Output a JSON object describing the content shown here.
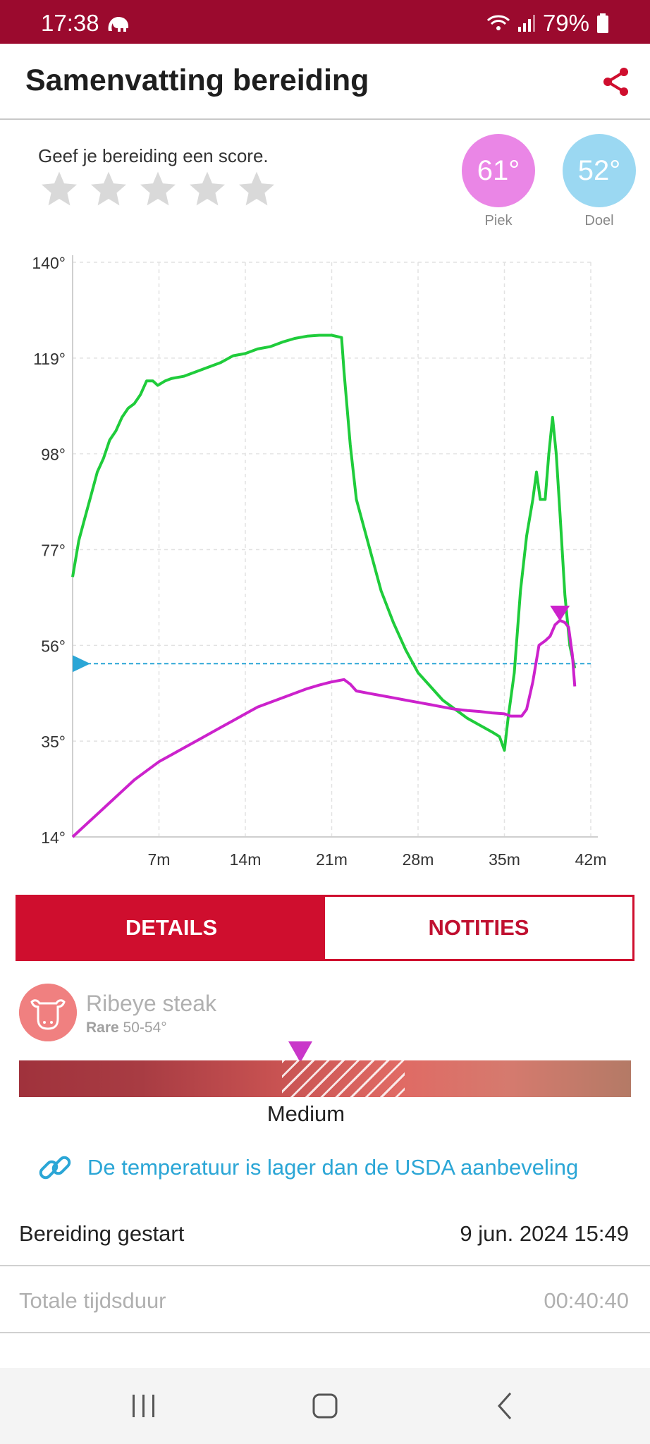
{
  "status": {
    "time": "17:38",
    "battery": "79%"
  },
  "header": {
    "title": "Samenvatting bereiding"
  },
  "rating": {
    "prompt": "Geef je bereiding een score.",
    "stars": 5,
    "filled": 0
  },
  "temps": {
    "peak": {
      "value": "61°",
      "label": "Piek",
      "color": "#ea86e6"
    },
    "target": {
      "value": "52°",
      "label": "Doel",
      "color": "#9bd8f2"
    }
  },
  "chart_data": {
    "type": "line",
    "yticks": [
      "14°",
      "35°",
      "56°",
      "77°",
      "98°",
      "119°",
      "140°"
    ],
    "ylim": [
      14,
      140
    ],
    "xticks": [
      "7m",
      "14m",
      "21m",
      "28m",
      "35m",
      "42m"
    ],
    "xlim": [
      0,
      42
    ],
    "grid": true,
    "target_line": 52,
    "series": [
      {
        "color": "#1fcc3b",
        "points": [
          [
            0,
            71
          ],
          [
            0.5,
            79
          ],
          [
            1,
            84
          ],
          [
            1.5,
            89
          ],
          [
            2,
            94
          ],
          [
            2.5,
            97
          ],
          [
            3,
            101
          ],
          [
            3.5,
            103
          ],
          [
            4,
            106
          ],
          [
            4.5,
            108
          ],
          [
            5,
            109
          ],
          [
            5.5,
            111
          ],
          [
            6,
            114
          ],
          [
            6.5,
            114
          ],
          [
            6.9,
            113
          ],
          [
            7.5,
            114
          ],
          [
            8,
            114.5
          ],
          [
            9,
            115
          ],
          [
            10,
            116
          ],
          [
            11,
            117
          ],
          [
            12,
            118
          ],
          [
            13,
            119.5
          ],
          [
            14,
            120
          ],
          [
            15,
            121
          ],
          [
            16,
            121.5
          ],
          [
            17,
            122.5
          ],
          [
            18,
            123.3
          ],
          [
            19,
            123.8
          ],
          [
            20,
            124
          ],
          [
            21,
            124
          ],
          [
            21.8,
            123.5
          ],
          [
            22,
            116
          ],
          [
            22.5,
            100
          ],
          [
            23,
            88
          ],
          [
            24,
            78
          ],
          [
            25,
            68
          ],
          [
            26,
            61
          ],
          [
            27,
            55
          ],
          [
            28,
            50
          ],
          [
            29,
            47
          ],
          [
            30,
            44
          ],
          [
            31,
            42
          ],
          [
            32,
            40
          ],
          [
            33,
            38.5
          ],
          [
            34,
            37
          ],
          [
            34.6,
            36
          ],
          [
            35,
            33
          ],
          [
            35.3,
            40
          ],
          [
            35.8,
            50
          ],
          [
            36.3,
            68
          ],
          [
            36.8,
            80
          ],
          [
            37.3,
            88
          ],
          [
            37.6,
            94
          ],
          [
            37.9,
            88
          ],
          [
            38.3,
            88
          ],
          [
            38.6,
            98
          ],
          [
            38.9,
            106
          ],
          [
            39.2,
            98
          ],
          [
            39.5,
            85
          ],
          [
            39.9,
            67
          ],
          [
            40.3,
            56
          ],
          [
            40.7,
            51
          ]
        ]
      },
      {
        "color": "#cc22cc",
        "points": [
          [
            0,
            14
          ],
          [
            1,
            16.5
          ],
          [
            2,
            19
          ],
          [
            3,
            21.5
          ],
          [
            4,
            24
          ],
          [
            5,
            26.5
          ],
          [
            6,
            28.5
          ],
          [
            7,
            30.5
          ],
          [
            8,
            32
          ],
          [
            9,
            33.5
          ],
          [
            10,
            35
          ],
          [
            11,
            36.5
          ],
          [
            12,
            38
          ],
          [
            13,
            39.5
          ],
          [
            14,
            41
          ],
          [
            15,
            42.5
          ],
          [
            16,
            43.5
          ],
          [
            17,
            44.5
          ],
          [
            18,
            45.5
          ],
          [
            19,
            46.5
          ],
          [
            20,
            47.3
          ],
          [
            21,
            48
          ],
          [
            22,
            48.5
          ],
          [
            22.5,
            47.5
          ],
          [
            23,
            46
          ],
          [
            24,
            45.5
          ],
          [
            25,
            45
          ],
          [
            26,
            44.5
          ],
          [
            27,
            44
          ],
          [
            28,
            43.5
          ],
          [
            29,
            43
          ],
          [
            30,
            42.5
          ],
          [
            31,
            42
          ],
          [
            32,
            41.7
          ],
          [
            33,
            41.5
          ],
          [
            34,
            41.2
          ],
          [
            35,
            41
          ],
          [
            35.5,
            40.5
          ],
          [
            36.4,
            40.5
          ],
          [
            36.8,
            42
          ],
          [
            37.3,
            48
          ],
          [
            37.8,
            56
          ],
          [
            38.3,
            57
          ],
          [
            38.7,
            58
          ],
          [
            39.1,
            60.5
          ],
          [
            39.5,
            61.5
          ],
          [
            39.9,
            61
          ],
          [
            40.2,
            60
          ],
          [
            40.5,
            54
          ],
          [
            40.7,
            47
          ]
        ]
      }
    ],
    "peak_marker": {
      "x": 39.5,
      "y": 61
    }
  },
  "tabs": [
    {
      "label": "DETAILS"
    },
    {
      "label": "NOTITIES"
    }
  ],
  "meat": {
    "name": "Ribeye steak",
    "doneness_prefix": "Rare",
    "doneness_range": "50-54°"
  },
  "doneness_scale": {
    "current": "Medium"
  },
  "usda": {
    "text": "De temperatuur is lager dan de USDA aanbeveling"
  },
  "info": [
    {
      "label": "Bereiding gestart",
      "value": "9 jun. 2024 15:49",
      "muted": false
    },
    {
      "label": "Totale tijdsduur",
      "value": "00:40:40",
      "muted": true
    }
  ]
}
